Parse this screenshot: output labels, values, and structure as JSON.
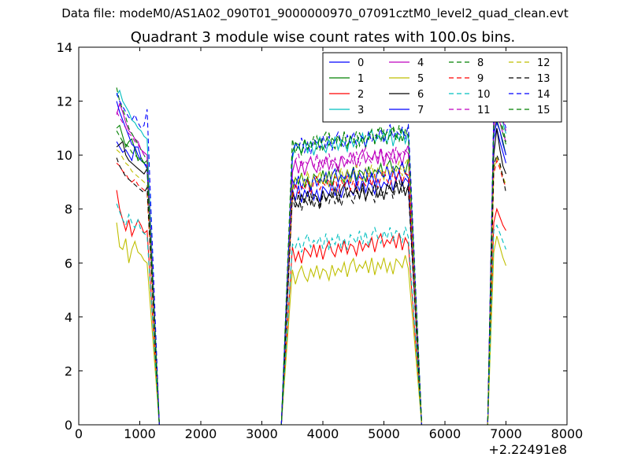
{
  "header": {
    "data_file": "Data file: modeM0/AS1A02_090T01_9000000970_07091cztM0_level2_quad_clean.evt"
  },
  "chart_data": {
    "type": "line",
    "title": "Quadrant 3 module wise count rates with 100.0s bins.",
    "xlabel": "",
    "ylabel": "",
    "xlim": [
      0,
      8000
    ],
    "ylim": [
      0,
      14
    ],
    "x_ticks": [
      "0",
      "1000",
      "2000",
      "3000",
      "4000",
      "5000",
      "6000",
      "7000",
      "8000"
    ],
    "y_ticks": [
      "0",
      "2",
      "4",
      "6",
      "8",
      "10",
      "12",
      "14"
    ],
    "x_offset_label": "+2.22491e8",
    "grid": false,
    "legend": {
      "placement": "top-right",
      "columns": 4
    },
    "segments": [
      {
        "x_start": 620,
        "x_end": 1120,
        "step": 50
      },
      {
        "x_start": 3500,
        "x_end": 5400,
        "step": 50
      },
      {
        "x_start": 6800,
        "x_end": 7020,
        "step": 50
      }
    ],
    "drops": [
      {
        "x_from": 1120,
        "x_to": 1320
      },
      {
        "x_from": 3320,
        "x_to": 3500
      },
      {
        "x_from": 5400,
        "x_to": 5620
      },
      {
        "x_from": 6700,
        "x_to": 6800
      }
    ],
    "gap_ranges": [
      [
        1320,
        3320
      ],
      [
        5620,
        6700
      ]
    ],
    "series": [
      {
        "name": "0",
        "color": "#0000ff",
        "dash": false,
        "first": [
          10.5,
          10.3,
          10.1,
          10.2,
          10.0,
          9.8,
          10.3,
          10.3,
          9.9,
          9.7,
          9.6
        ],
        "second": 8.5,
        "third": [
          10.6,
          11.0,
          10.5,
          10.1,
          9.7
        ]
      },
      {
        "name": "1",
        "color": "#008000",
        "dash": false,
        "first": [
          11.0,
          11.1,
          10.7,
          10.3,
          10.5,
          10.6,
          10.2,
          9.8,
          9.9,
          9.7,
          9.8
        ],
        "second": 9.0,
        "third": [
          10.8,
          11.3,
          10.9,
          10.5,
          10.0
        ]
      },
      {
        "name": "2",
        "color": "#ff0000",
        "dash": false,
        "first": [
          8.7,
          8.0,
          7.6,
          7.2,
          7.6,
          7.0,
          7.3,
          7.6,
          7.4,
          7.1,
          7.2
        ],
        "second": 6.3,
        "third": [
          7.5,
          8.0,
          7.7,
          7.4,
          7.2
        ]
      },
      {
        "name": "3",
        "color": "#00bfbf",
        "dash": false,
        "first": [
          12.2,
          12.4,
          12.0,
          11.8,
          11.6,
          11.3,
          11.2,
          11.0,
          10.9,
          10.7,
          10.6
        ],
        "second": 10.2,
        "third": [
          11.5,
          12.6,
          11.9,
          11.2,
          10.8
        ]
      },
      {
        "name": "4",
        "color": "#bf00bf",
        "dash": false,
        "first": [
          11.5,
          11.9,
          11.6,
          11.2,
          10.9,
          10.8,
          10.6,
          10.5,
          10.2,
          10.1,
          10.0
        ],
        "second": 9.5,
        "third": [
          11.0,
          11.5,
          11.2,
          10.8,
          10.5
        ]
      },
      {
        "name": "5",
        "color": "#bfbf00",
        "dash": false,
        "first": [
          7.5,
          6.6,
          6.5,
          6.9,
          6.0,
          6.5,
          6.8,
          6.4,
          6.3,
          6.1,
          6.0
        ],
        "second": 5.5,
        "third": [
          6.4,
          7.0,
          6.6,
          6.2,
          5.9
        ]
      },
      {
        "name": "6",
        "color": "#000000",
        "dash": false,
        "first": [
          10.3,
          10.4,
          10.5,
          10.0,
          9.8,
          9.7,
          9.6,
          9.5,
          9.4,
          9.3,
          9.5
        ],
        "second": 8.3,
        "third": [
          10.0,
          11.0,
          10.2,
          9.6,
          9.3
        ]
      },
      {
        "name": "7",
        "color": "#0000ff",
        "dash": false,
        "first": [
          12.0,
          11.6,
          11.3,
          11.0,
          10.7,
          10.4,
          10.3,
          10.0,
          9.8,
          9.7,
          9.5
        ],
        "second": 8.9,
        "third": [
          10.8,
          11.2,
          10.9,
          10.4,
          10.0
        ]
      },
      {
        "name": "8",
        "color": "#008000",
        "dash": true,
        "first": [
          12.5,
          12.0,
          11.7,
          11.4,
          11.0,
          10.8,
          10.6,
          10.4,
          10.2,
          10.0,
          9.8
        ],
        "second": 10.3,
        "third": [
          11.4,
          12.0,
          11.6,
          11.0,
          10.5
        ]
      },
      {
        "name": "9",
        "color": "#ff0000",
        "dash": true,
        "first": [
          9.7,
          9.6,
          9.4,
          9.3,
          9.1,
          9.0,
          9.1,
          8.9,
          8.8,
          8.7,
          8.6
        ],
        "second": 8.7,
        "third": [
          9.3,
          9.8,
          9.5,
          9.1,
          8.8
        ]
      },
      {
        "name": "10",
        "color": "#00bfbf",
        "dash": true,
        "first": [
          8.2,
          7.9,
          7.6,
          7.4,
          7.8,
          7.5,
          7.3,
          7.6,
          7.2,
          7.1,
          7.0
        ],
        "second": 6.6,
        "third": [
          7.2,
          7.4,
          7.1,
          6.8,
          6.5
        ]
      },
      {
        "name": "11",
        "color": "#bf00bf",
        "dash": true,
        "first": [
          11.6,
          11.4,
          11.2,
          11.0,
          10.8,
          10.7,
          10.5,
          10.4,
          10.2,
          10.0,
          9.9
        ],
        "second": 9.6,
        "third": [
          11.6,
          12.2,
          11.8,
          11.3,
          10.9
        ]
      },
      {
        "name": "12",
        "color": "#bfbf00",
        "dash": true,
        "first": [
          10.2,
          10.1,
          9.9,
          9.7,
          9.6,
          9.4,
          9.3,
          9.2,
          9.1,
          9.0,
          8.9
        ],
        "second": 9.0,
        "third": [
          9.5,
          9.9,
          9.6,
          9.2,
          8.9
        ]
      },
      {
        "name": "13",
        "color": "#000000",
        "dash": true,
        "first": [
          9.9,
          9.6,
          9.4,
          9.2,
          9.1,
          9.0,
          8.9,
          8.8,
          8.7,
          8.6,
          8.8
        ],
        "second": 8.2,
        "third": [
          9.6,
          10.0,
          9.7,
          9.2,
          8.6
        ]
      },
      {
        "name": "14",
        "color": "#0000ff",
        "dash": true,
        "first": [
          12.3,
          12.0,
          11.8,
          11.6,
          11.4,
          11.3,
          11.5,
          11.2,
          11.0,
          11.1,
          11.7
        ],
        "second": 10.3,
        "third": [
          11.6,
          12.3,
          11.9,
          11.4,
          11.0
        ]
      },
      {
        "name": "15",
        "color": "#008000",
        "dash": true,
        "first": [
          10.9,
          10.7,
          10.5,
          10.4,
          10.3,
          10.1,
          10.0,
          9.9,
          9.8,
          9.7,
          9.6
        ],
        "second": 10.3,
        "third": [
          11.2,
          11.6,
          11.3,
          10.8,
          10.4
        ]
      }
    ]
  }
}
